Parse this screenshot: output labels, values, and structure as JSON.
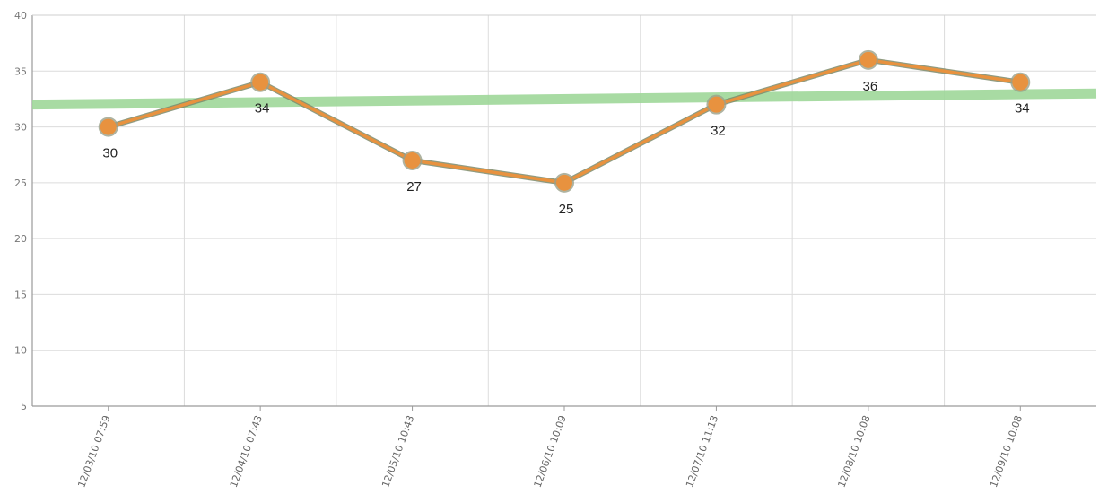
{
  "chart_data": {
    "type": "line",
    "categories": [
      "12/03/10 07:59",
      "12/04/10 07:43",
      "12/05/10 10:43",
      "12/06/10 10:09",
      "12/07/10 11:13",
      "12/08/10 10:08",
      "12/09/10 10:08"
    ],
    "series": [
      {
        "values": [
          30,
          34,
          27,
          25,
          32,
          36,
          34
        ],
        "color": "#e8923f"
      }
    ],
    "data_labels": [
      "30",
      "34",
      "27",
      "25",
      "32",
      "36",
      "34"
    ],
    "reference_line": {
      "start": 32,
      "end": 33,
      "color": "#9fd89a"
    },
    "ylim": [
      5,
      40
    ],
    "yticks": [
      "5",
      "10",
      "15",
      "20",
      "25",
      "30",
      "35",
      "40"
    ],
    "grid": true,
    "title": "",
    "xlabel": "",
    "ylabel": ""
  }
}
